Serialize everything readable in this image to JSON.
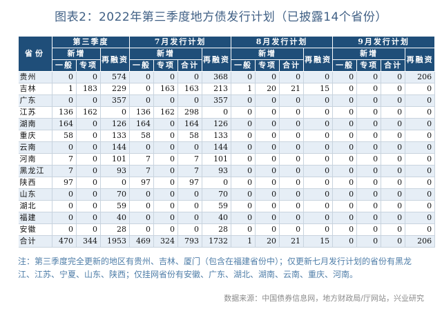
{
  "title": "图表2：2022年第三季度地方债发行计划（已披露14个省份）",
  "header": {
    "province": "省份",
    "groups": [
      "第三季度",
      "7月发行计划",
      "8月发行计划",
      "9月发行计划"
    ],
    "sub": {
      "new": "新增",
      "refi": "再融资"
    },
    "cols": {
      "general": "一般",
      "special": "专项",
      "total": "合计"
    }
  },
  "rows": [
    {
      "province": "贵州",
      "vals": [
        "0",
        "0",
        "574",
        "0",
        "0",
        "0",
        "368",
        "0",
        "0",
        "0",
        "0",
        "0",
        "0",
        "0",
        "206"
      ]
    },
    {
      "province": "吉林",
      "vals": [
        "1",
        "183",
        "229",
        "0",
        "163",
        "163",
        "213",
        "1",
        "20",
        "21",
        "15",
        "0",
        "0",
        "0",
        "0"
      ]
    },
    {
      "province": "广东",
      "vals": [
        "0",
        "0",
        "357",
        "0",
        "0",
        "0",
        "357",
        "0",
        "0",
        "0",
        "0",
        "0",
        "0",
        "0",
        "0"
      ]
    },
    {
      "province": "江苏",
      "vals": [
        "136",
        "162",
        "0",
        "136",
        "162",
        "298",
        "0",
        "0",
        "0",
        "0",
        "0",
        "0",
        "0",
        "0",
        "0"
      ]
    },
    {
      "province": "湖南",
      "vals": [
        "164",
        "0",
        "126",
        "164",
        "0",
        "164",
        "126",
        "0",
        "0",
        "0",
        "0",
        "0",
        "0",
        "0",
        "0"
      ]
    },
    {
      "province": "重庆",
      "vals": [
        "58",
        "0",
        "133",
        "58",
        "0",
        "58",
        "133",
        "0",
        "0",
        "0",
        "0",
        "0",
        "0",
        "0",
        "0"
      ]
    },
    {
      "province": "云南",
      "vals": [
        "0",
        "0",
        "144",
        "0",
        "0",
        "0",
        "144",
        "0",
        "0",
        "0",
        "0",
        "0",
        "0",
        "0",
        "0"
      ]
    },
    {
      "province": "河南",
      "vals": [
        "7",
        "0",
        "101",
        "7",
        "0",
        "7",
        "101",
        "0",
        "0",
        "0",
        "0",
        "0",
        "0",
        "0",
        "0"
      ]
    },
    {
      "province": "黑龙江",
      "vals": [
        "7",
        "0",
        "93",
        "7",
        "0",
        "7",
        "93",
        "0",
        "0",
        "0",
        "0",
        "0",
        "0",
        "0",
        "0"
      ]
    },
    {
      "province": "陕西",
      "vals": [
        "97",
        "0",
        "0",
        "97",
        "0",
        "97",
        "0",
        "0",
        "0",
        "0",
        "0",
        "0",
        "0",
        "0",
        "0"
      ]
    },
    {
      "province": "山东",
      "vals": [
        "0",
        "0",
        "70",
        "0",
        "0",
        "0",
        "70",
        "0",
        "0",
        "0",
        "0",
        "0",
        "0",
        "0",
        "0"
      ]
    },
    {
      "province": "湖北",
      "vals": [
        "0",
        "0",
        "59",
        "0",
        "0",
        "0",
        "59",
        "0",
        "0",
        "0",
        "0",
        "0",
        "0",
        "0",
        "0"
      ]
    },
    {
      "province": "福建",
      "vals": [
        "0",
        "0",
        "40",
        "0",
        "0",
        "0",
        "40",
        "0",
        "0",
        "0",
        "0",
        "0",
        "0",
        "0",
        "0"
      ]
    },
    {
      "province": "安徽",
      "vals": [
        "0",
        "0",
        "28",
        "0",
        "0",
        "0",
        "28",
        "0",
        "0",
        "0",
        "0",
        "0",
        "0",
        "0",
        "0"
      ]
    }
  ],
  "total": {
    "province": "合计",
    "vals": [
      "470",
      "344",
      "1953",
      "469",
      "324",
      "793",
      "1732",
      "1",
      "20",
      "21",
      "15",
      "0",
      "0",
      "0",
      "206"
    ]
  },
  "note": "注：第三季度完全更新的地区有贵州、吉林、厦门（包含在福建省份中）；仅更新七月发行计划的省份有黑龙江、江苏、宁夏、山东、陕西；仅挂网省份有安徽、广东、湖北、湖南、云南、重庆、河南。",
  "source": "数据来源：中国债券信息网，地方财政局/厅网站，兴业研究"
}
